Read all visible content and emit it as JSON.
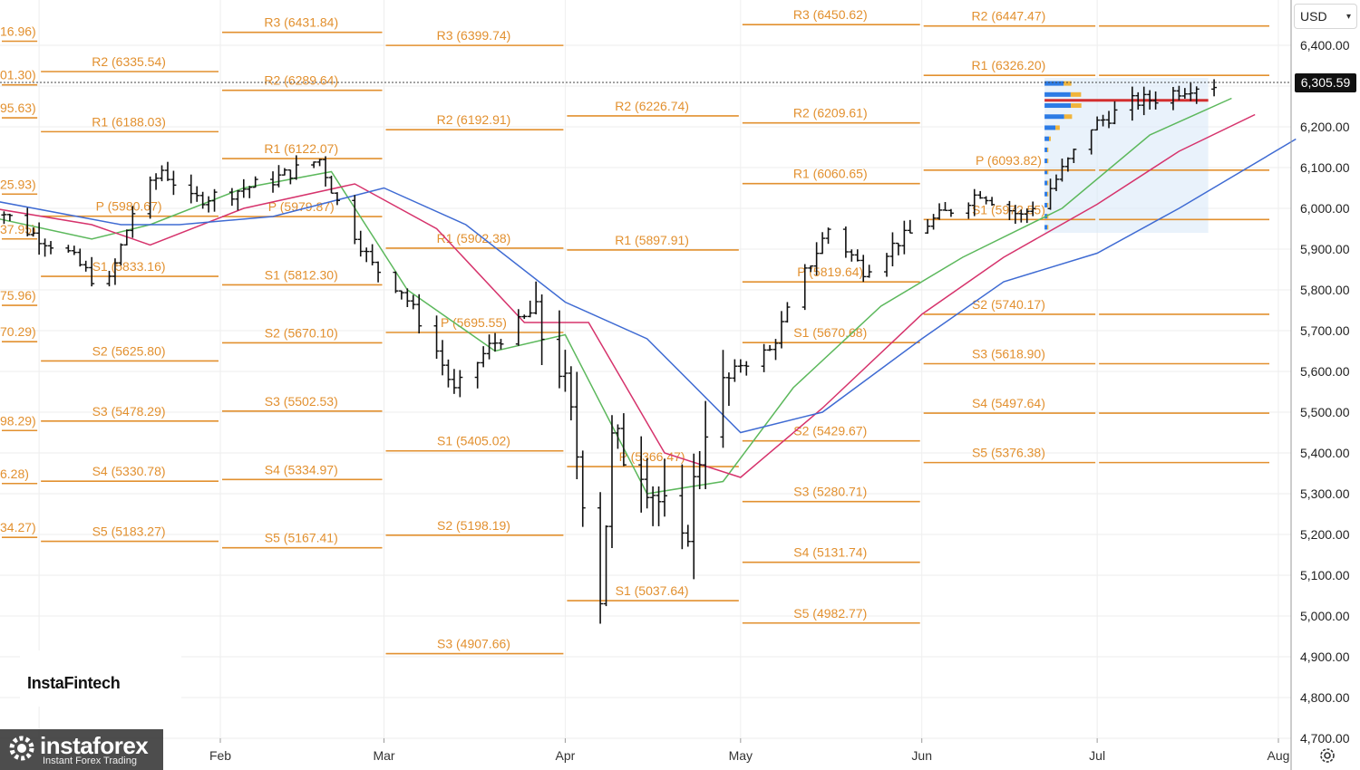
{
  "currency": {
    "label": "USD"
  },
  "last_price": "6,305.59",
  "brand": {
    "name": "InstaFintech"
  },
  "watermark": {
    "name": "instaforex",
    "tagline": "Instant Forex Trading"
  },
  "colors": {
    "pivot": "#e2902f",
    "ma_fast": "#5cb85c",
    "ma_mid": "#d6336c",
    "ma_slow": "#3f6bd3",
    "poc": "#d32f2f",
    "profile_bg": "#dbe9f9",
    "profile_blue": "#2c7be5",
    "profile_orange": "#f0b43c"
  },
  "icons": {
    "settings": "gear-icon",
    "currency_chevron": "chevron-down-icon"
  },
  "chart_data": {
    "type": "ohlc",
    "y_range": [
      4700,
      6500
    ],
    "y_ticks": [
      {
        "v": 6400,
        "label": "6,400.00"
      },
      {
        "v": 6300,
        "label": "6,300.00"
      },
      {
        "v": 6200,
        "label": "6,200.00"
      },
      {
        "v": 6100,
        "label": "6,100.00"
      },
      {
        "v": 6000,
        "label": "6,000.00"
      },
      {
        "v": 5900,
        "label": "5,900.00"
      },
      {
        "v": 5800,
        "label": "5,800.00"
      },
      {
        "v": 5700,
        "label": "5,700.00"
      },
      {
        "v": 5600,
        "label": "5,600.00"
      },
      {
        "v": 5500,
        "label": "5,500.00"
      },
      {
        "v": 5400,
        "label": "5,400.00"
      },
      {
        "v": 5300,
        "label": "5,300.00"
      },
      {
        "v": 5200,
        "label": "5,200.00"
      },
      {
        "v": 5100,
        "label": "5,100.00"
      },
      {
        "v": 5000,
        "label": "5,000.00"
      },
      {
        "v": 4900,
        "label": "4,900.00"
      },
      {
        "v": 4800,
        "label": "4,800.00"
      },
      {
        "v": 4700,
        "label": "4,700.00"
      }
    ],
    "x_range": [
      "2024-12-20",
      "2025-08-06"
    ],
    "months": [
      {
        "date": "2025-02-01",
        "label": "Feb"
      },
      {
        "date": "2025-03-01",
        "label": "Mar"
      },
      {
        "date": "2025-04-01",
        "label": "Apr"
      },
      {
        "date": "2025-05-01",
        "label": "May"
      },
      {
        "date": "2025-06-01",
        "label": "Jun"
      },
      {
        "date": "2025-07-01",
        "label": "Jul"
      },
      {
        "date": "2025-08-01",
        "label": "Aug"
      }
    ],
    "last_price": 6305.59,
    "price_series": [
      [
        "2024-12-23",
        6020
      ],
      [
        "2024-12-30",
        5945
      ],
      [
        "2025-01-06",
        5890
      ],
      [
        "2025-01-10",
        5830
      ],
      [
        "2025-01-13",
        5820
      ],
      [
        "2025-01-17",
        5990
      ],
      [
        "2025-01-22",
        6095
      ],
      [
        "2025-01-27",
        6020
      ],
      [
        "2025-02-03",
        6040
      ],
      [
        "2025-02-10",
        6070
      ],
      [
        "2025-02-18",
        6120
      ],
      [
        "2025-02-21",
        6015
      ],
      [
        "2025-02-27",
        5860
      ],
      [
        "2025-03-04",
        5800
      ],
      [
        "2025-03-10",
        5650
      ],
      [
        "2025-03-13",
        5550
      ],
      [
        "2025-03-19",
        5660
      ],
      [
        "2025-03-26",
        5740
      ],
      [
        "2025-03-31",
        5620
      ],
      [
        "2025-04-03",
        5400
      ],
      [
        "2025-04-07",
        5060
      ],
      [
        "2025-04-09",
        5420
      ],
      [
        "2025-04-14",
        5380
      ],
      [
        "2025-04-21",
        5150
      ],
      [
        "2025-04-25",
        5480
      ],
      [
        "2025-05-01",
        5620
      ],
      [
        "2025-05-06",
        5650
      ],
      [
        "2025-05-12",
        5840
      ],
      [
        "2025-05-16",
        5950
      ],
      [
        "2025-05-22",
        5850
      ],
      [
        "2025-05-28",
        5920
      ],
      [
        "2025-06-04",
        5980
      ],
      [
        "2025-06-11",
        6040
      ],
      [
        "2025-06-18",
        5980
      ],
      [
        "2025-06-23",
        6050
      ],
      [
        "2025-06-30",
        6200
      ],
      [
        "2025-07-07",
        6260
      ],
      [
        "2025-07-11",
        6270
      ],
      [
        "2025-07-17",
        6300
      ],
      [
        "2025-07-21",
        6305.59
      ]
    ],
    "moving_averages": [
      {
        "points": [
          [
            "2024-12-20",
            5990
          ],
          [
            "2025-01-10",
            5925
          ],
          [
            "2025-01-20",
            5960
          ],
          [
            "2025-02-05",
            6050
          ],
          [
            "2025-02-20",
            6090
          ],
          [
            "2025-03-05",
            5800
          ],
          [
            "2025-03-20",
            5650
          ],
          [
            "2025-04-01",
            5690
          ],
          [
            "2025-04-15",
            5300
          ],
          [
            "2025-04-28",
            5330
          ],
          [
            "2025-05-10",
            5560
          ],
          [
            "2025-05-25",
            5760
          ],
          [
            "2025-06-08",
            5880
          ],
          [
            "2025-06-25",
            6000
          ],
          [
            "2025-07-10",
            6180
          ],
          [
            "2025-07-24",
            6270
          ]
        ]
      },
      {
        "points": [
          [
            "2024-12-20",
            6010
          ],
          [
            "2025-01-10",
            5960
          ],
          [
            "2025-01-20",
            5910
          ],
          [
            "2025-02-05",
            6000
          ],
          [
            "2025-02-24",
            6060
          ],
          [
            "2025-03-10",
            5950
          ],
          [
            "2025-03-25",
            5720
          ],
          [
            "2025-04-05",
            5720
          ],
          [
            "2025-04-18",
            5400
          ],
          [
            "2025-05-01",
            5340
          ],
          [
            "2025-05-15",
            5510
          ],
          [
            "2025-06-01",
            5740
          ],
          [
            "2025-06-15",
            5880
          ],
          [
            "2025-07-01",
            6010
          ],
          [
            "2025-07-15",
            6140
          ],
          [
            "2025-07-28",
            6230
          ]
        ]
      },
      {
        "points": [
          [
            "2024-12-20",
            6030
          ],
          [
            "2025-01-15",
            5960
          ],
          [
            "2025-01-25",
            5960
          ],
          [
            "2025-02-10",
            5980
          ],
          [
            "2025-03-01",
            6050
          ],
          [
            "2025-03-15",
            5960
          ],
          [
            "2025-04-01",
            5770
          ],
          [
            "2025-04-15",
            5680
          ],
          [
            "2025-05-01",
            5450
          ],
          [
            "2025-05-15",
            5500
          ],
          [
            "2025-06-01",
            5680
          ],
          [
            "2025-06-15",
            5820
          ],
          [
            "2025-07-01",
            5890
          ],
          [
            "2025-07-15",
            6000
          ],
          [
            "2025-08-04",
            6170
          ]
        ]
      }
    ],
    "pivot_groups": [
      {
        "x0": "2024-12-20",
        "x1": "2025-01-01",
        "levels": [
          {
            "v": 6410,
            "text": "16.96)"
          },
          {
            "v": 6303,
            "text": "01.30)"
          },
          {
            "v": 6222,
            "text": "95.63)"
          },
          {
            "v": 6035,
            "text": "25.93)"
          },
          {
            "v": 5925,
            "text": "37.95)"
          },
          {
            "v": 5762,
            "text": "75.96)"
          },
          {
            "v": 5673,
            "text": "70.29)"
          },
          {
            "v": 5455,
            "text": "98.29)"
          },
          {
            "v": 5325,
            "text": "6.28)"
          },
          {
            "v": 5193,
            "text": "34.27)"
          }
        ]
      },
      {
        "x0": "2025-01-01",
        "x1": "2025-02-01",
        "levels": [
          {
            "v": 6335.54,
            "text": "R2 (6335.54)"
          },
          {
            "v": 6188.03,
            "text": "R1 (6188.03)"
          },
          {
            "v": 5980.67,
            "text": "P (5980.67)"
          },
          {
            "v": 5833.16,
            "text": "S1 (5833.16)"
          },
          {
            "v": 5625.8,
            "text": "S2 (5625.80)"
          },
          {
            "v": 5478.29,
            "text": "S3 (5478.29)"
          },
          {
            "v": 5330.78,
            "text": "S4 (5330.78)"
          },
          {
            "v": 5183.27,
            "text": "S5 (5183.27)"
          }
        ]
      },
      {
        "x0": "2025-02-01",
        "x1": "2025-03-01",
        "levels": [
          {
            "v": 6431.84,
            "text": "R3 (6431.84)"
          },
          {
            "v": 6289.64,
            "text": "R2 (6289.64)"
          },
          {
            "v": 6122.07,
            "text": "R1 (6122.07)"
          },
          {
            "v": 5979.87,
            "text": "P (5979.87)"
          },
          {
            "v": 5812.3,
            "text": "S1 (5812.30)"
          },
          {
            "v": 5670.1,
            "text": "S2 (5670.10)"
          },
          {
            "v": 5502.53,
            "text": "S3 (5502.53)"
          },
          {
            "v": 5334.97,
            "text": "S4 (5334.97)"
          },
          {
            "v": 5167.41,
            "text": "S5 (5167.41)"
          }
        ]
      },
      {
        "x0": "2025-03-01",
        "x1": "2025-04-01",
        "levels": [
          {
            "v": 6399.74,
            "text": "R3 (6399.74)"
          },
          {
            "v": 6192.91,
            "text": "R2 (6192.91)"
          },
          {
            "v": 5902.38,
            "text": "R1 (5902.38)"
          },
          {
            "v": 5695.55,
            "text": "P (5695.55)"
          },
          {
            "v": 5405.02,
            "text": "S1 (5405.02)"
          },
          {
            "v": 5198.19,
            "text": "S2 (5198.19)"
          },
          {
            "v": 4907.66,
            "text": "S3 (4907.66)"
          }
        ]
      },
      {
        "x0": "2025-04-01",
        "x1": "2025-05-01",
        "levels": [
          {
            "v": 6226.74,
            "text": "R2 (6226.74)"
          },
          {
            "v": 5897.91,
            "text": "R1 (5897.91)"
          },
          {
            "v": 5366.47,
            "text": "P (5366.47)"
          },
          {
            "v": 5037.64,
            "text": "S1 (5037.64)"
          }
        ]
      },
      {
        "x0": "2025-05-01",
        "x1": "2025-06-01",
        "levels": [
          {
            "v": 6450.62,
            "text": "R3 (6450.62)"
          },
          {
            "v": 6209.61,
            "text": "R2 (6209.61)"
          },
          {
            "v": 6060.65,
            "text": "R1 (6060.65)"
          },
          {
            "v": 5819.64,
            "text": "P (5819.64)"
          },
          {
            "v": 5670.68,
            "text": "S1 (5670.68)"
          },
          {
            "v": 5429.67,
            "text": "S2 (5429.67)"
          },
          {
            "v": 5280.71,
            "text": "S3 (5280.71)"
          },
          {
            "v": 5131.74,
            "text": "S4 (5131.74)"
          },
          {
            "v": 4982.77,
            "text": "S5 (4982.77)"
          }
        ]
      },
      {
        "x0": "2025-06-01",
        "x1": "2025-07-01",
        "levels": [
          {
            "v": 6447.47,
            "text": "R2 (6447.47)"
          },
          {
            "v": 6326.2,
            "text": "R1 (6326.20)"
          },
          {
            "v": 6093.82,
            "text": "P (6093.82)"
          },
          {
            "v": 5972.55,
            "text": "S1 (5972.55)"
          },
          {
            "v": 5740.17,
            "text": "S2 (5740.17)"
          },
          {
            "v": 5618.9,
            "text": "S3 (5618.90)"
          },
          {
            "v": 5497.64,
            "text": "S4 (5497.64)"
          },
          {
            "v": 5376.38,
            "text": "S5 (5376.38)"
          }
        ]
      }
    ],
    "volume_profile": {
      "x0": "2025-06-22",
      "x1": "2025-07-20",
      "y_top": 6320,
      "y_bottom": 5940,
      "poc": 6265
    }
  }
}
